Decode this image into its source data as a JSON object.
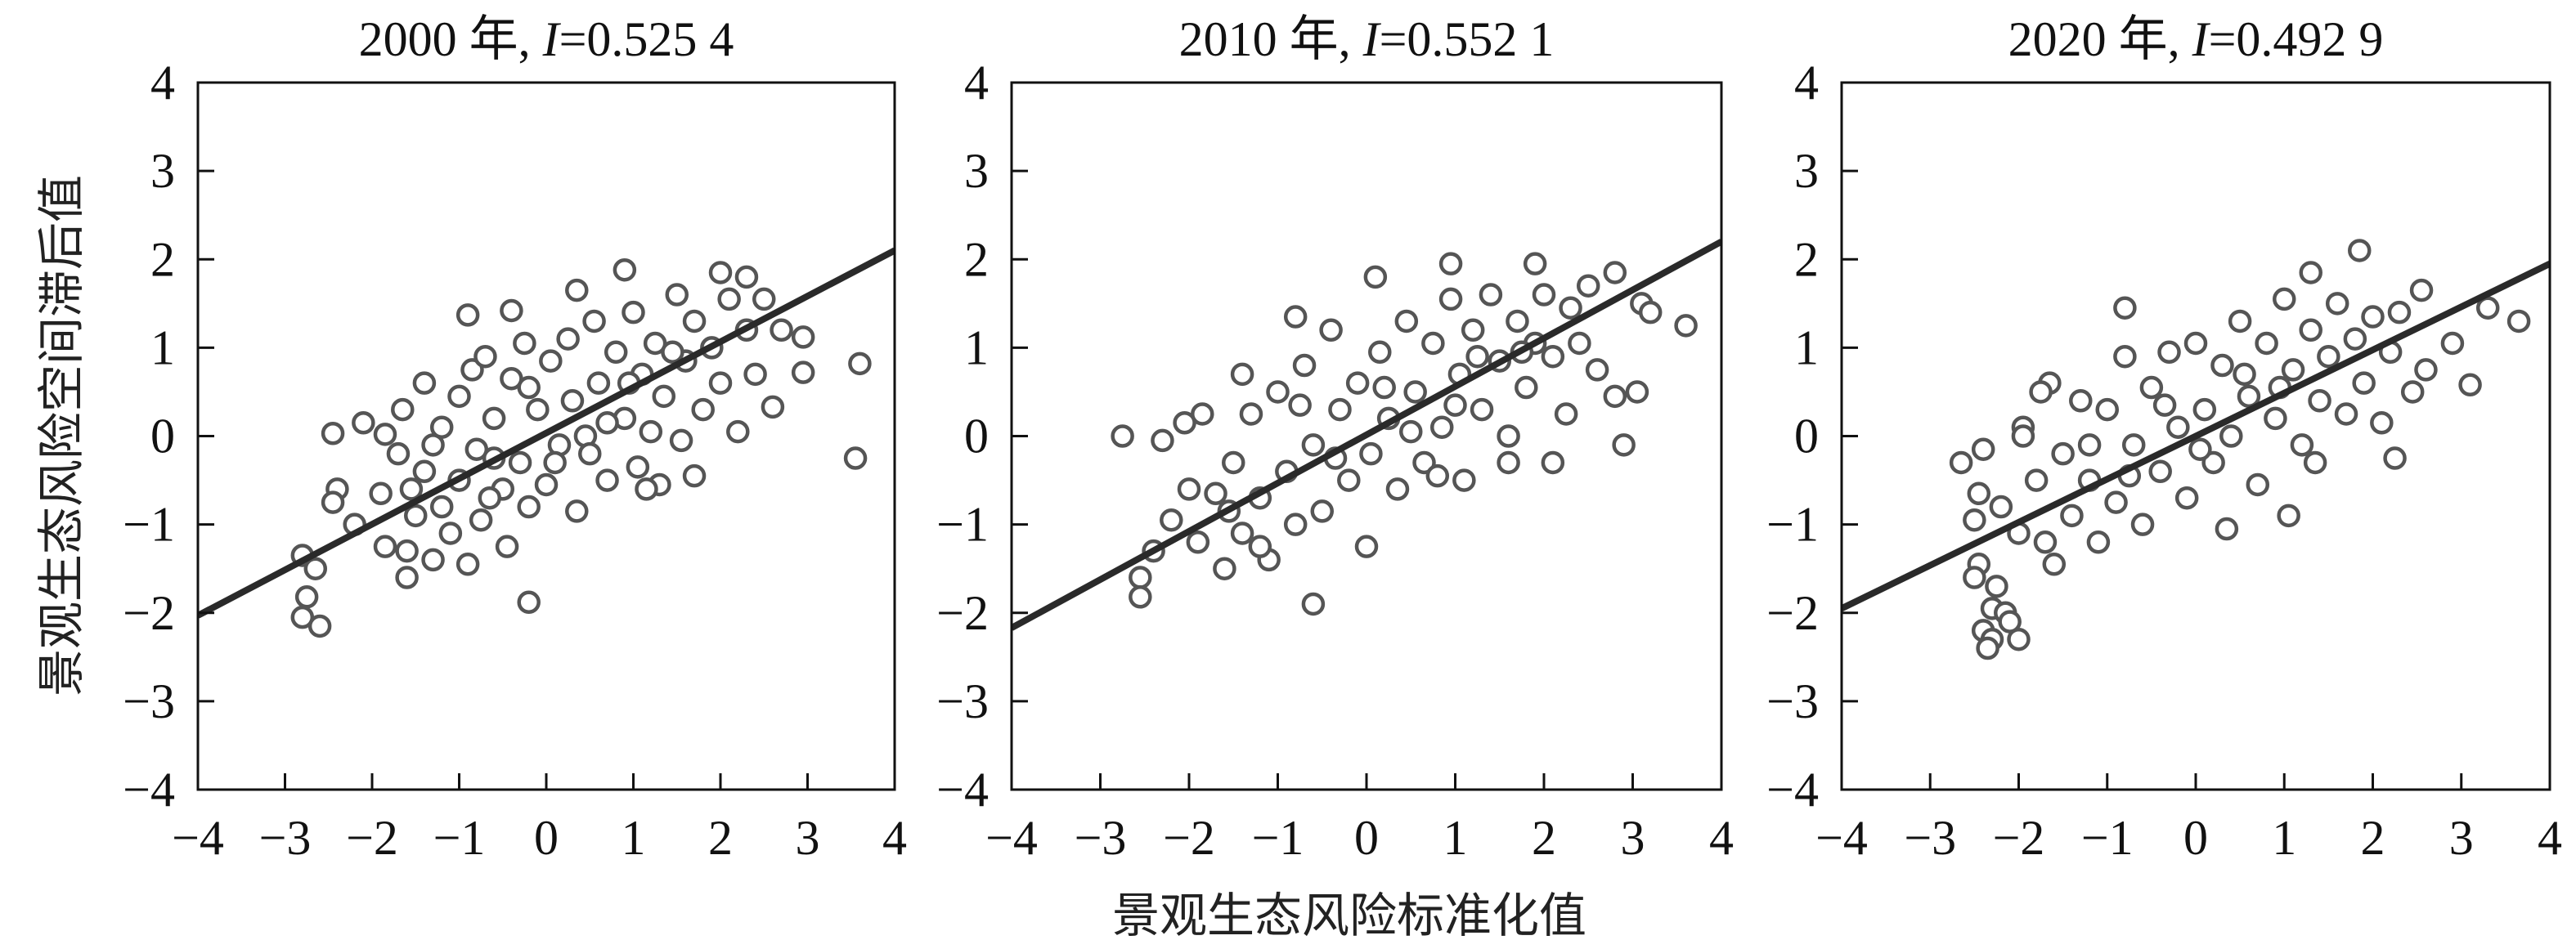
{
  "chart_data": {
    "type": "scatter",
    "shared_xlabel": "景观生态风险标准化值",
    "shared_ylabel": "景观生态风险空间滞后值",
    "xlim": [
      -4,
      4
    ],
    "ylim": [
      -4,
      4
    ],
    "xticks": [
      "−4",
      "−3",
      "−2",
      "−1",
      "0",
      "1",
      "2",
      "3",
      "4"
    ],
    "yticks": [
      "−4",
      "−3",
      "−2",
      "−1",
      "0",
      "1",
      "2",
      "3",
      "4"
    ],
    "colors": {
      "marker": "#555555",
      "line": "#2a2a2a",
      "frame": "#111111"
    },
    "grid": false,
    "panels": [
      {
        "year_label": "2000 年, ",
        "stat_symbol": "I",
        "stat_value": "=0.525 4",
        "moran_i": 0.5254,
        "fit_line": [
          [
            -4,
            -2.03
          ],
          [
            4,
            2.1
          ]
        ],
        "points": [
          [
            -2.8,
            -1.35
          ],
          [
            -2.75,
            -1.82
          ],
          [
            -2.8,
            -2.05
          ],
          [
            -2.6,
            -2.15
          ],
          [
            -2.65,
            -1.5
          ],
          [
            -2.45,
            0.03
          ],
          [
            -2.4,
            -0.6
          ],
          [
            -2.45,
            -0.75
          ],
          [
            -2.2,
            -1.0
          ],
          [
            -2.1,
            0.15
          ],
          [
            3.6,
            0.82
          ],
          [
            3.55,
            -0.25
          ],
          [
            2.95,
            0.72
          ],
          [
            2.95,
            1.12
          ],
          [
            0.9,
            1.88
          ],
          [
            -0.2,
            -1.88
          ],
          [
            1.7,
            -0.45
          ],
          [
            2.6,
            0.33
          ],
          [
            2.3,
            1.8
          ],
          [
            2.0,
            1.85
          ],
          [
            -0.9,
            1.37
          ],
          [
            -0.4,
            1.42
          ],
          [
            0.35,
            1.65
          ],
          [
            -1.85,
            0.02
          ],
          [
            -1.6,
            -1.6
          ],
          [
            -1.9,
            -0.65
          ],
          [
            -1.85,
            -1.25
          ],
          [
            -1.7,
            -0.2
          ],
          [
            -1.65,
            0.3
          ],
          [
            -1.6,
            -1.3
          ],
          [
            -1.5,
            -0.9
          ],
          [
            -1.4,
            0.6
          ],
          [
            -1.4,
            -0.4
          ],
          [
            -1.3,
            -1.4
          ],
          [
            -1.2,
            0.1
          ],
          [
            -1.2,
            -0.8
          ],
          [
            -1.1,
            -1.1
          ],
          [
            -1.0,
            0.45
          ],
          [
            -1.0,
            -0.5
          ],
          [
            -0.9,
            -1.45
          ],
          [
            -0.85,
            0.75
          ],
          [
            -0.8,
            -0.15
          ],
          [
            -0.75,
            -0.95
          ],
          [
            -0.7,
            0.9
          ],
          [
            -0.6,
            0.2
          ],
          [
            -0.5,
            -0.6
          ],
          [
            -0.45,
            -1.25
          ],
          [
            -0.4,
            0.65
          ],
          [
            -0.3,
            -0.3
          ],
          [
            -0.25,
            1.05
          ],
          [
            -0.2,
            -0.8
          ],
          [
            -0.1,
            0.3
          ],
          [
            0,
            -0.55
          ],
          [
            0.05,
            0.85
          ],
          [
            0.15,
            -0.1
          ],
          [
            0.25,
            1.1
          ],
          [
            0.3,
            0.4
          ],
          [
            0.35,
            -0.85
          ],
          [
            0.45,
            0.0
          ],
          [
            0.55,
            1.3
          ],
          [
            0.6,
            0.6
          ],
          [
            0.7,
            -0.5
          ],
          [
            0.8,
            0.95
          ],
          [
            0.9,
            0.2
          ],
          [
            1.0,
            1.4
          ],
          [
            1.05,
            -0.35
          ],
          [
            1.1,
            0.7
          ],
          [
            1.2,
            0.05
          ],
          [
            1.25,
            1.05
          ],
          [
            1.35,
            0.45
          ],
          [
            1.5,
            1.6
          ],
          [
            1.55,
            -0.05
          ],
          [
            1.6,
            0.85
          ],
          [
            1.7,
            1.3
          ],
          [
            1.8,
            0.3
          ],
          [
            1.9,
            1.0
          ],
          [
            2.0,
            0.6
          ],
          [
            2.1,
            1.55
          ],
          [
            2.2,
            0.05
          ],
          [
            2.3,
            1.2
          ],
          [
            2.4,
            0.7
          ],
          [
            2.5,
            1.55
          ],
          [
            2.7,
            1.2
          ],
          [
            0.5,
            -0.2
          ],
          [
            -0.6,
            -0.25
          ],
          [
            1.3,
            -0.55
          ],
          [
            1.15,
            -0.6
          ],
          [
            -1.3,
            -0.1
          ],
          [
            -0.2,
            0.55
          ],
          [
            0.7,
            0.15
          ],
          [
            1.45,
            0.95
          ],
          [
            -1.55,
            -0.6
          ],
          [
            0.1,
            -0.3
          ],
          [
            0.95,
            0.6
          ],
          [
            -0.65,
            -0.7
          ]
        ]
      },
      {
        "year_label": "2010 年, ",
        "stat_symbol": "I",
        "stat_value": "=0.552 1",
        "moran_i": 0.5521,
        "fit_line": [
          [
            -4,
            -2.17
          ],
          [
            4,
            2.2
          ]
        ],
        "points": [
          [
            -2.75,
            0.0
          ],
          [
            -2.3,
            -0.05
          ],
          [
            -2.55,
            -1.6
          ],
          [
            -2.55,
            -1.82
          ],
          [
            -2.2,
            -0.95
          ],
          [
            -2.4,
            -1.3
          ],
          [
            -2.05,
            0.15
          ],
          [
            -1.85,
            0.25
          ],
          [
            -0.6,
            -1.9
          ],
          [
            0.95,
            1.95
          ],
          [
            0.1,
            1.8
          ],
          [
            1.9,
            1.95
          ],
          [
            2.8,
            1.85
          ],
          [
            3.6,
            1.25
          ],
          [
            3.1,
            1.5
          ],
          [
            3.2,
            1.4
          ],
          [
            3.05,
            0.5
          ],
          [
            2.9,
            -0.1
          ],
          [
            2.8,
            0.45
          ],
          [
            2.1,
            -0.3
          ],
          [
            -1.4,
            0.7
          ],
          [
            -0.8,
            1.35
          ],
          [
            1.6,
            -0.3
          ],
          [
            2.25,
            0.25
          ],
          [
            -2.0,
            -0.6
          ],
          [
            -1.9,
            -1.2
          ],
          [
            -1.7,
            -0.65
          ],
          [
            -1.6,
            -1.5
          ],
          [
            -1.5,
            -0.3
          ],
          [
            -1.4,
            -1.1
          ],
          [
            -1.3,
            0.25
          ],
          [
            -1.2,
            -0.7
          ],
          [
            -1.1,
            -1.4
          ],
          [
            -1.0,
            0.5
          ],
          [
            -0.9,
            -0.4
          ],
          [
            -0.8,
            -1.0
          ],
          [
            -0.7,
            0.8
          ],
          [
            -0.6,
            -0.1
          ],
          [
            -0.5,
            -0.85
          ],
          [
            -0.4,
            1.2
          ],
          [
            -0.3,
            0.3
          ],
          [
            -0.2,
            -0.5
          ],
          [
            -0.1,
            0.6
          ],
          [
            0,
            -1.25
          ],
          [
            0.05,
            -0.2
          ],
          [
            0.15,
            0.95
          ],
          [
            0.25,
            0.2
          ],
          [
            0.35,
            -0.6
          ],
          [
            0.45,
            1.3
          ],
          [
            0.55,
            0.5
          ],
          [
            0.65,
            -0.3
          ],
          [
            0.75,
            1.05
          ],
          [
            0.85,
            0.1
          ],
          [
            0.95,
            1.55
          ],
          [
            1.05,
            0.7
          ],
          [
            1.1,
            -0.5
          ],
          [
            1.2,
            1.2
          ],
          [
            1.3,
            0.3
          ],
          [
            1.4,
            1.6
          ],
          [
            1.5,
            0.85
          ],
          [
            1.6,
            0.0
          ],
          [
            1.7,
            1.3
          ],
          [
            1.8,
            0.55
          ],
          [
            1.9,
            1.05
          ],
          [
            2.0,
            1.6
          ],
          [
            2.1,
            0.9
          ],
          [
            2.3,
            1.45
          ],
          [
            2.4,
            1.05
          ],
          [
            2.5,
            1.7
          ],
          [
            2.6,
            0.75
          ],
          [
            -1.2,
            -1.25
          ],
          [
            -0.35,
            -0.25
          ],
          [
            0.5,
            0.05
          ],
          [
            1.25,
            0.9
          ],
          [
            -0.75,
            0.35
          ],
          [
            0.2,
            0.55
          ],
          [
            1.0,
            0.35
          ],
          [
            -1.55,
            -0.85
          ],
          [
            0.8,
            -0.45
          ],
          [
            1.75,
            0.95
          ]
        ]
      },
      {
        "year_label": "2020 年, ",
        "stat_symbol": "I",
        "stat_value": "=0.492 9",
        "moran_i": 0.4929,
        "fit_line": [
          [
            -4,
            -1.95
          ],
          [
            4,
            1.95
          ]
        ],
        "points": [
          [
            -2.65,
            -0.3
          ],
          [
            -2.4,
            -0.15
          ],
          [
            -2.45,
            -0.65
          ],
          [
            -2.5,
            -0.95
          ],
          [
            -2.45,
            -1.45
          ],
          [
            -2.5,
            -1.6
          ],
          [
            -2.25,
            -1.7
          ],
          [
            -2.4,
            -2.2
          ],
          [
            -2.3,
            -2.3
          ],
          [
            -2.3,
            -1.95
          ],
          [
            -2.15,
            -2.0
          ],
          [
            -2.1,
            -2.1
          ],
          [
            -2.0,
            -2.3
          ],
          [
            -2.35,
            -2.4
          ],
          [
            -1.95,
            0.1
          ],
          [
            -1.95,
            0.0
          ],
          [
            -0.8,
            1.45
          ],
          [
            1.85,
            2.1
          ],
          [
            1.3,
            1.85
          ],
          [
            3.65,
            1.3
          ],
          [
            3.3,
            1.45
          ],
          [
            3.1,
            0.58
          ],
          [
            2.9,
            1.05
          ],
          [
            2.25,
            -0.25
          ],
          [
            1.05,
            -0.9
          ],
          [
            0.35,
            -1.05
          ],
          [
            -1.6,
            -1.45
          ],
          [
            -1.65,
            0.6
          ],
          [
            -1.75,
            0.5
          ],
          [
            -2.2,
            -0.8
          ],
          [
            -2.0,
            -1.1
          ],
          [
            -1.8,
            -0.5
          ],
          [
            -1.7,
            -1.2
          ],
          [
            -1.5,
            -0.2
          ],
          [
            -1.4,
            -0.9
          ],
          [
            -1.3,
            0.4
          ],
          [
            -1.2,
            -0.5
          ],
          [
            -1.1,
            -1.2
          ],
          [
            -1.0,
            0.3
          ],
          [
            -0.9,
            -0.75
          ],
          [
            -0.8,
            0.9
          ],
          [
            -0.7,
            -0.1
          ],
          [
            -0.6,
            -1.0
          ],
          [
            -0.5,
            0.55
          ],
          [
            -0.4,
            -0.4
          ],
          [
            -0.3,
            0.95
          ],
          [
            -0.2,
            0.1
          ],
          [
            -0.1,
            -0.7
          ],
          [
            0,
            1.05
          ],
          [
            0.1,
            0.3
          ],
          [
            0.2,
            -0.3
          ],
          [
            0.3,
            0.8
          ],
          [
            0.4,
            0.0
          ],
          [
            0.5,
            1.3
          ],
          [
            0.6,
            0.45
          ],
          [
            0.7,
            -0.55
          ],
          [
            0.8,
            1.05
          ],
          [
            0.9,
            0.2
          ],
          [
            1.0,
            1.55
          ],
          [
            1.1,
            0.75
          ],
          [
            1.2,
            -0.1
          ],
          [
            1.3,
            1.2
          ],
          [
            1.4,
            0.4
          ],
          [
            1.5,
            0.9
          ],
          [
            1.6,
            1.5
          ],
          [
            1.7,
            0.25
          ],
          [
            1.8,
            1.1
          ],
          [
            1.9,
            0.6
          ],
          [
            2.0,
            1.35
          ],
          [
            2.1,
            0.15
          ],
          [
            2.2,
            0.95
          ],
          [
            2.3,
            1.4
          ],
          [
            2.45,
            0.5
          ],
          [
            2.55,
            1.65
          ],
          [
            2.6,
            0.75
          ],
          [
            -1.2,
            -0.1
          ],
          [
            -0.35,
            0.35
          ],
          [
            0.55,
            0.7
          ],
          [
            1.35,
            -0.3
          ],
          [
            -0.75,
            -0.45
          ],
          [
            0.05,
            -0.15
          ],
          [
            0.95,
            0.55
          ]
        ]
      }
    ]
  }
}
